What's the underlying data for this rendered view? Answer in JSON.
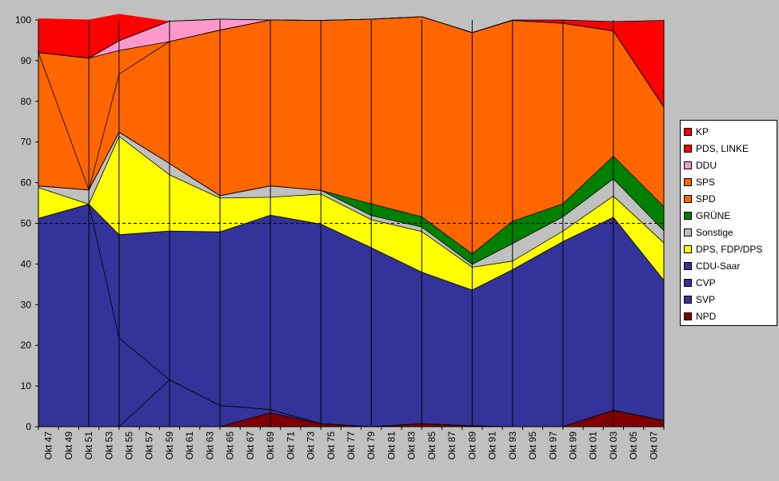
{
  "chart_data": {
    "type": "area",
    "stacked": true,
    "ylim": [
      0,
      100
    ],
    "yticks": [
      0,
      10,
      20,
      30,
      40,
      50,
      60,
      70,
      80,
      90,
      100
    ],
    "reference_line": 50,
    "x_ticks": [
      "Okt 47",
      "Okt 49",
      "Okt 51",
      "Okt 53",
      "Okt 55",
      "Okt 57",
      "Okt 59",
      "Okt 61",
      "Okt 63",
      "Okt 65",
      "Okt 67",
      "Okt 69",
      "Okt 71",
      "Okt 73",
      "Okt 75",
      "Okt 77",
      "Okt 79",
      "Okt 81",
      "Okt 83",
      "Okt 85",
      "Okt 87",
      "Okt 89",
      "Okt 91",
      "Okt 93",
      "Okt 95",
      "Okt 97",
      "Okt 99",
      "Okt 01",
      "Okt 03",
      "Okt 05",
      "Okt 07"
    ],
    "elections": [
      "Okt 47",
      "Okt 52",
      "Okt 55",
      "Okt 60",
      "Okt 65",
      "Okt 70",
      "Okt 75",
      "Okt 80",
      "Okt 85",
      "Okt 90",
      "Okt 94",
      "Okt 99",
      "Okt 04",
      "Okt 09"
    ],
    "election_index": [
      0,
      2.5,
      4,
      6.5,
      9,
      11.5,
      14,
      16.5,
      19,
      21.5,
      23.5,
      26,
      28.5,
      31
    ],
    "legend": [
      "KP",
      "PDS, LINKE",
      "DDU",
      "SPS",
      "SPD",
      "GRÜNE",
      "Sonstige",
      "DPS, FDP/DPS",
      "CDU-Saar",
      "CVP",
      "SVP",
      "NPD"
    ],
    "series": [
      {
        "name": "NPD",
        "color": "#800000",
        "values": [
          0,
          0,
          0,
          0,
          0,
          3.4,
          0.7,
          0,
          0.7,
          0.2,
          0,
          0,
          4,
          1.5
        ]
      },
      {
        "name": "SVP",
        "color": "#333399",
        "values": [
          0,
          0,
          0,
          11.5,
          5.2,
          0.8,
          0,
          0,
          0,
          0,
          0,
          0,
          0,
          0
        ]
      },
      {
        "name": "CVP",
        "color": "#333399",
        "values": [
          51.2,
          54.7,
          21.8,
          0,
          0,
          0,
          0,
          0,
          0,
          0,
          0,
          0,
          0,
          0
        ]
      },
      {
        "name": "CDU-Saar",
        "color": "#333399",
        "values": [
          0,
          0,
          25.4,
          36.6,
          42.7,
          47.8,
          49.1,
          44,
          37.3,
          33.4,
          38.6,
          45.5,
          47.5,
          34.5
        ]
      },
      {
        "name": "DPS, FDP/DPS",
        "color": "#ffff00",
        "values": [
          7.6,
          0,
          24.2,
          13.8,
          8.3,
          4.4,
          7.4,
          6.9,
          10,
          5.6,
          2.1,
          2.6,
          5.2,
          9.2
        ]
      },
      {
        "name": "Sonstige",
        "color": "#c0c0c0",
        "values": [
          0.4,
          3.5,
          1,
          2.8,
          0.6,
          2.8,
          0.9,
          1,
          1.1,
          0.7,
          4.3,
          3.5,
          4.2,
          3
        ]
      },
      {
        "name": "GRÜNE",
        "color": "#008000",
        "values": [
          0,
          0,
          0,
          0,
          0,
          0,
          0,
          2.9,
          2.5,
          2.6,
          5.5,
          3.2,
          5.6,
          5.9
        ]
      },
      {
        "name": "SPD",
        "color": "#ff6600",
        "values": [
          32.8,
          0,
          14.3,
          30,
          40.7,
          40.8,
          41.8,
          45.4,
          49.2,
          54.4,
          49.4,
          44.4,
          30.8,
          24.5
        ]
      },
      {
        "name": "SPS",
        "color": "#ff6600",
        "values": [
          0,
          32.4,
          5.8,
          0,
          0,
          0,
          0,
          0,
          0,
          0,
          0,
          0,
          0,
          0
        ]
      },
      {
        "name": "DDU",
        "color": "#ff99cc",
        "values": [
          0,
          0,
          2.4,
          5,
          2.7,
          0,
          0,
          0,
          0,
          0,
          0,
          0,
          0,
          0
        ]
      },
      {
        "name": "PDS, LINKE",
        "color": "#ff0000",
        "values": [
          0,
          0,
          0,
          0,
          0,
          0,
          0,
          0,
          0,
          0,
          0.1,
          0.8,
          2.3,
          21.3
        ]
      },
      {
        "name": "KP",
        "color": "#ff0000",
        "values": [
          8.4,
          9.5,
          6.6,
          0,
          0,
          0,
          0,
          0,
          0,
          0,
          0,
          0,
          0,
          0
        ]
      }
    ]
  }
}
